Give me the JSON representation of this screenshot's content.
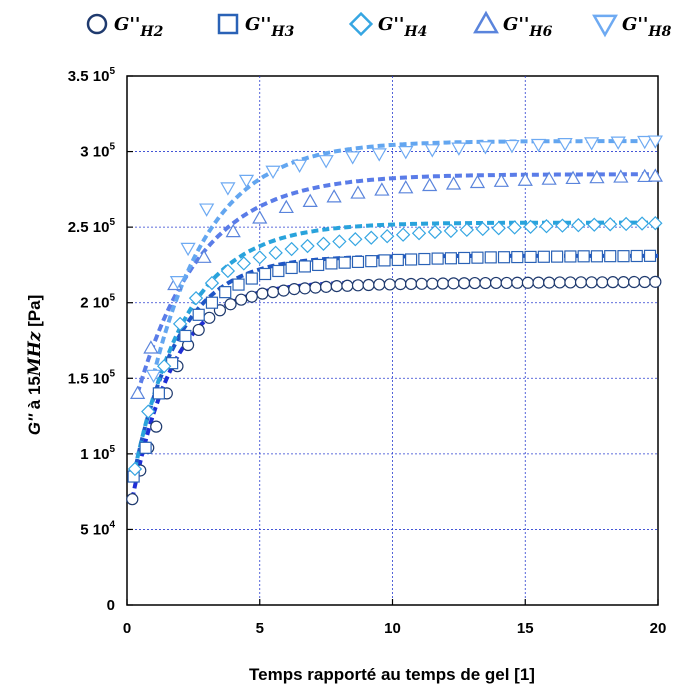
{
  "chart_data": {
    "type": "scatter",
    "xlabel": "Temps rapporté au temps de gel [1]",
    "ylabel_prefix": "G''",
    "ylabel_middle": " à 15",
    "ylabel_unit": "MHz",
    "ylabel_suffix": " [Pa]",
    "xlim": [
      0,
      20
    ],
    "ylim": [
      0,
      350000
    ],
    "x_ticks": [
      0,
      5,
      10,
      15,
      20
    ],
    "x_tick_labels": [
      "0",
      "5",
      "10",
      "15",
      "20"
    ],
    "y_ticks": [
      0,
      50000,
      100000,
      150000,
      200000,
      250000,
      300000,
      350000
    ],
    "y_tick_labels": [
      {
        "mant": "0",
        "exp": ""
      },
      {
        "mant": "5 10",
        "exp": "4"
      },
      {
        "mant": "1 10",
        "exp": "5"
      },
      {
        "mant": "1.5 10",
        "exp": "5"
      },
      {
        "mant": "2 10",
        "exp": "5"
      },
      {
        "mant": "2.5 10",
        "exp": "5"
      },
      {
        "mant": "3 10",
        "exp": "5"
      },
      {
        "mant": "3.5 10",
        "exp": "5"
      }
    ],
    "grid": true,
    "legend_position": "top",
    "series": [
      {
        "name_main": "G''",
        "name_sub": "H2",
        "marker": "circle",
        "marker_color": "#1f3a6e",
        "fit_color": "#1f2fd6",
        "y0": 70000,
        "ymax": 214000,
        "tau": 1.6,
        "x": [
          0.2,
          0.5,
          0.8,
          1.1,
          1.5,
          1.9,
          2.3,
          2.7,
          3.1,
          3.5,
          3.9,
          4.3,
          4.7,
          5.1,
          5.5,
          5.9,
          6.3,
          6.7,
          7.1,
          7.5,
          7.9,
          8.3,
          8.7,
          9.1,
          9.5,
          9.9,
          10.3,
          10.7,
          11.1,
          11.5,
          11.9,
          12.3,
          12.7,
          13.1,
          13.5,
          13.9,
          14.3,
          14.7,
          15.1,
          15.5,
          15.9,
          16.3,
          16.7,
          17.1,
          17.5,
          17.9,
          18.3,
          18.7,
          19.1,
          19.5,
          19.9
        ],
        "y": [
          70000,
          89000,
          104000,
          118000,
          140000,
          158000,
          172000,
          182000,
          190000,
          195000,
          199000,
          202000,
          204000,
          206000,
          207000,
          208000,
          209000,
          209500,
          210000,
          210500,
          211000,
          211200,
          211500,
          211700,
          212000,
          212100,
          212300,
          212400,
          212500,
          212600,
          212700,
          212800,
          212900,
          213000,
          213000,
          213100,
          213100,
          213200,
          213200,
          213300,
          213300,
          213400,
          213400,
          213500,
          213500,
          213500,
          213600,
          213600,
          213700,
          213700,
          213800
        ]
      },
      {
        "name_main": "G''",
        "name_sub": "H3",
        "marker": "square",
        "marker_color": "#2a62b6",
        "fit_color": "#1f56c8",
        "y0": 85000,
        "ymax": 231000,
        "tau": 1.7,
        "x": [
          0.25,
          0.7,
          1.2,
          1.7,
          2.2,
          2.7,
          3.2,
          3.7,
          4.2,
          4.7,
          5.2,
          5.7,
          6.2,
          6.7,
          7.2,
          7.7,
          8.2,
          8.7,
          9.2,
          9.7,
          10.2,
          10.7,
          11.2,
          11.7,
          12.2,
          12.7,
          13.2,
          13.7,
          14.2,
          14.7,
          15.2,
          15.7,
          16.2,
          16.7,
          17.2,
          17.7,
          18.2,
          18.7,
          19.2,
          19.7
        ],
        "y": [
          85000,
          104000,
          140000,
          160000,
          178000,
          192000,
          200000,
          207000,
          212000,
          216000,
          219000,
          221000,
          223000,
          224000,
          225000,
          226000,
          226500,
          227000,
          227500,
          228000,
          228300,
          228600,
          228900,
          229200,
          229400,
          229600,
          229800,
          230000,
          230100,
          230200,
          230300,
          230400,
          230500,
          230600,
          230700,
          230700,
          230800,
          230800,
          230900,
          231000
        ]
      },
      {
        "name_main": "G''",
        "name_sub": "H4",
        "marker": "diamond",
        "marker_color": "#36a6e2",
        "fit_color": "#29a3dc",
        "y0": 90000,
        "ymax": 253000,
        "tau": 2.0,
        "x": [
          0.3,
          0.8,
          1.4,
          2.0,
          2.6,
          3.2,
          3.8,
          4.4,
          5.0,
          5.6,
          6.2,
          6.8,
          7.4,
          8.0,
          8.6,
          9.2,
          9.8,
          10.4,
          11.0,
          11.6,
          12.2,
          12.8,
          13.4,
          14.0,
          14.6,
          15.2,
          15.8,
          16.4,
          17.0,
          17.6,
          18.2,
          18.8,
          19.4,
          19.9
        ],
        "y": [
          90000,
          128000,
          158000,
          186000,
          203000,
          213000,
          221000,
          226000,
          230000,
          233000,
          235500,
          237500,
          239000,
          240500,
          242000,
          243000,
          244000,
          245000,
          246000,
          246800,
          247500,
          248200,
          248800,
          249300,
          249800,
          250200,
          250600,
          251000,
          251300,
          251600,
          251900,
          252100,
          252400,
          252600
        ]
      },
      {
        "name_main": "G''",
        "name_sub": "H6",
        "marker": "triangle-up",
        "marker_color": "#5a84dc",
        "fit_color": "#5a7ce8",
        "y0": 140000,
        "ymax": 285000,
        "tau": 2.4,
        "x": [
          0.4,
          0.9,
          1.8,
          2.9,
          4.0,
          5.0,
          6.0,
          6.9,
          7.8,
          8.7,
          9.6,
          10.5,
          11.4,
          12.3,
          13.2,
          14.1,
          15.0,
          15.9,
          16.8,
          17.7,
          18.6,
          19.5,
          19.9
        ],
        "y": [
          140000,
          170000,
          212000,
          230000,
          247000,
          256000,
          263000,
          267000,
          270000,
          272500,
          274500,
          276000,
          277500,
          278500,
          279500,
          280300,
          281000,
          281700,
          282200,
          282700,
          283100,
          283500,
          283700
        ]
      },
      {
        "name_main": "G''",
        "name_sub": "H8",
        "marker": "triangle-down",
        "marker_color": "#6eaaf2",
        "fit_color": "#63a6f0",
        "y0": 152000,
        "ymax": 307000,
        "tau": 2.2,
        "x": [
          1.0,
          1.9,
          2.3,
          3.0,
          3.8,
          4.5,
          5.5,
          6.5,
          7.5,
          8.5,
          9.5,
          10.5,
          11.5,
          12.5,
          13.5,
          14.5,
          15.5,
          16.5,
          17.5,
          18.5,
          19.5,
          19.9
        ],
        "y": [
          152000,
          214000,
          236000,
          262000,
          276000,
          281000,
          287000,
          291000,
          294000,
          296500,
          298500,
          300000,
          301200,
          302300,
          303200,
          304000,
          304700,
          305300,
          305800,
          306300,
          306700,
          307000
        ]
      }
    ]
  }
}
